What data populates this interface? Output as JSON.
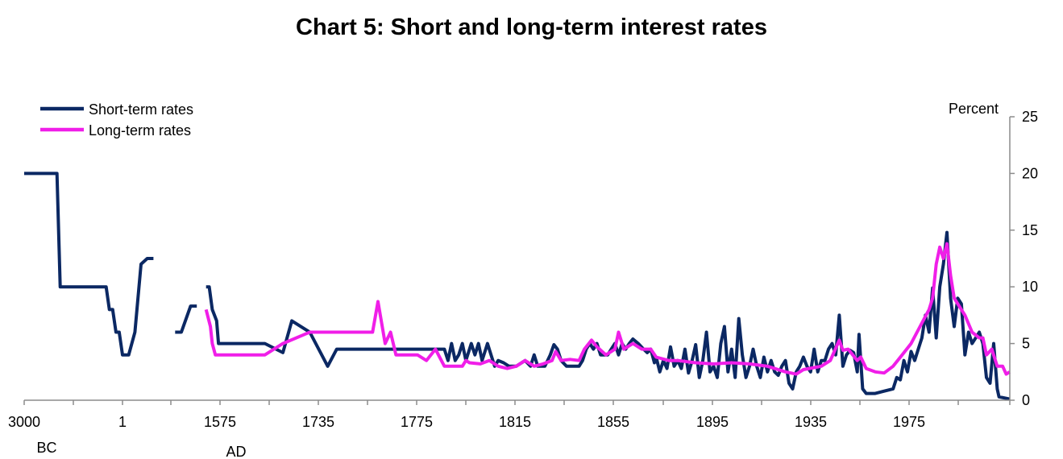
{
  "chart_data": {
    "type": "line",
    "title": "Chart 5: Short and long-term interest rates",
    "ylabel": "Percent",
    "ylim": [
      0,
      25
    ],
    "y_ticks": [
      0,
      5,
      10,
      15,
      20,
      25
    ],
    "x_ticks": [
      "3000",
      "1",
      "1575",
      "1735",
      "1775",
      "1815",
      "1855",
      "1895",
      "1935",
      "1975"
    ],
    "era_labels": [
      "BC",
      "AD"
    ],
    "grid": false,
    "legend_position": "top-left",
    "colors": {
      "short": "#0b2863",
      "long": "#f01ee8"
    },
    "x_axis_note": "piecewise axis: 3000 BC to 1 AD, then 1 to about 1550 AD, then 1575 to 2015",
    "series": [
      {
        "name": "Short-term rates",
        "segments": [
          [
            [
              -3000,
              20
            ],
            [
              -2000,
              20
            ],
            [
              -1900,
              10
            ],
            [
              -1000,
              10
            ],
            [
              -500,
              10
            ],
            [
              -400,
              8
            ],
            [
              -300,
              8
            ],
            [
              -200,
              6
            ],
            [
              -100,
              6
            ],
            [
              0,
              4
            ],
            [
              100,
              4
            ],
            [
              200,
              6
            ],
            [
              300,
              12
            ],
            [
              400,
              12.5
            ],
            [
              500,
              12.5
            ]
          ],
          [
            [
              850,
              6
            ],
            [
              950,
              6
            ],
            [
              1100,
              8.3
            ],
            [
              1200,
              8.3
            ]
          ],
          [
            [
              1350,
              10
            ],
            [
              1400,
              10
            ],
            [
              1450,
              8
            ],
            [
              1520,
              7
            ],
            [
              1550,
              5
            ],
            [
              1575,
              5
            ],
            [
              1600,
              5
            ],
            [
              1610,
              4.2
            ],
            [
              1615,
              7
            ],
            [
              1625,
              6
            ],
            [
              1635,
              3
            ],
            [
              1640,
              4.5
            ],
            [
              1690,
              4.5
            ],
            [
              1700,
              4.5
            ],
            [
              1702,
              3.5
            ],
            [
              1704,
              5
            ],
            [
              1706,
              3.5
            ],
            [
              1708,
              4
            ],
            [
              1710,
              5
            ],
            [
              1712,
              3.5
            ],
            [
              1715,
              5
            ],
            [
              1717,
              4
            ],
            [
              1719,
              5
            ],
            [
              1721,
              3.5
            ],
            [
              1724,
              5
            ],
            [
              1726,
              4
            ],
            [
              1728,
              3
            ],
            [
              1730,
              3.5
            ],
            [
              1733,
              3.3
            ],
            [
              1736,
              3
            ],
            [
              1740,
              3
            ],
            [
              1745,
              3.5
            ],
            [
              1748,
              3
            ],
            [
              1750,
              4
            ],
            [
              1752,
              3
            ],
            [
              1756,
              3
            ],
            [
              1759,
              4
            ],
            [
              1761,
              4.9
            ],
            [
              1763,
              4.5
            ],
            [
              1765,
              3.5
            ],
            [
              1768,
              3
            ],
            [
              1772,
              3
            ],
            [
              1775,
              3
            ],
            [
              1777,
              3.5
            ],
            [
              1779,
              4.5
            ],
            [
              1781,
              5
            ],
            [
              1783,
              4.5
            ],
            [
              1785,
              5
            ],
            [
              1787,
              4
            ],
            [
              1791,
              4
            ],
            [
              1793,
              4.5
            ],
            [
              1795,
              5
            ],
            [
              1797,
              4
            ],
            [
              1799,
              5
            ],
            [
              1801,
              4.5
            ],
            [
              1803,
              5
            ],
            [
              1805,
              5.4
            ],
            [
              1808,
              5
            ],
            [
              1811,
              4.5
            ],
            [
              1813,
              4.2
            ],
            [
              1815,
              4.5
            ],
            [
              1817,
              3.3
            ],
            [
              1818,
              3.8
            ],
            [
              1820,
              2.5
            ],
            [
              1822,
              3.5
            ],
            [
              1824,
              2.8
            ],
            [
              1826,
              4.7
            ],
            [
              1828,
              3
            ],
            [
              1830,
              3.5
            ],
            [
              1832,
              2.8
            ],
            [
              1834,
              4.5
            ],
            [
              1836,
              2.4
            ],
            [
              1838,
              3.5
            ],
            [
              1840,
              4.9
            ],
            [
              1842,
              2
            ],
            [
              1844,
              3.5
            ],
            [
              1846,
              6
            ],
            [
              1848,
              2.5
            ],
            [
              1850,
              3
            ],
            [
              1852,
              2
            ],
            [
              1854,
              5
            ],
            [
              1856,
              6.5
            ],
            [
              1858,
              2.5
            ],
            [
              1860,
              4.5
            ],
            [
              1862,
              2
            ],
            [
              1864,
              7.2
            ],
            [
              1866,
              4
            ],
            [
              1868,
              2
            ],
            [
              1870,
              3
            ],
            [
              1872,
              4.5
            ],
            [
              1874,
              3
            ],
            [
              1876,
              2
            ],
            [
              1878,
              3.8
            ],
            [
              1880,
              2.5
            ],
            [
              1882,
              3.5
            ],
            [
              1884,
              2.5
            ],
            [
              1886,
              2.2
            ],
            [
              1888,
              3
            ],
            [
              1890,
              3.5
            ],
            [
              1892,
              1.5
            ],
            [
              1894,
              1
            ],
            [
              1896,
              2.5
            ],
            [
              1898,
              3
            ],
            [
              1900,
              3.8
            ],
            [
              1902,
              3
            ],
            [
              1904,
              2.5
            ],
            [
              1906,
              4.5
            ],
            [
              1908,
              2.5
            ],
            [
              1910,
              3.5
            ],
            [
              1912,
              3.5
            ],
            [
              1914,
              4.5
            ],
            [
              1916,
              5
            ],
            [
              1918,
              4
            ],
            [
              1920,
              7.5
            ],
            [
              1922,
              3
            ],
            [
              1924,
              4
            ],
            [
              1926,
              4.4
            ],
            [
              1928,
              4.2
            ],
            [
              1930,
              2.5
            ],
            [
              1931,
              5.8
            ],
            [
              1933,
              1
            ],
            [
              1935,
              0.6
            ],
            [
              1940,
              0.6
            ],
            [
              1945,
              0.8
            ],
            [
              1950,
              1
            ],
            [
              1952,
              2
            ],
            [
              1954,
              1.8
            ],
            [
              1956,
              3.5
            ],
            [
              1958,
              2.5
            ],
            [
              1960,
              4.3
            ],
            [
              1962,
              3.5
            ],
            [
              1964,
              4.5
            ],
            [
              1966,
              5.5
            ],
            [
              1968,
              7.5
            ],
            [
              1970,
              6
            ],
            [
              1972,
              9.9
            ],
            [
              1974,
              5.5
            ],
            [
              1976,
              10
            ],
            [
              1978,
              12
            ],
            [
              1980,
              14.8
            ],
            [
              1982,
              9
            ],
            [
              1984,
              6.5
            ],
            [
              1986,
              9
            ],
            [
              1988,
              8.5
            ],
            [
              1990,
              4
            ],
            [
              1992,
              6
            ],
            [
              1994,
              5
            ],
            [
              1996,
              5.5
            ],
            [
              1998,
              6
            ],
            [
              2000,
              5
            ],
            [
              2002,
              2
            ],
            [
              2004,
              1.5
            ],
            [
              2006,
              5
            ],
            [
              2008,
              1
            ],
            [
              2009,
              0.3
            ],
            [
              2012,
              0.2
            ],
            [
              2015,
              0.1
            ]
          ]
        ]
      },
      {
        "name": "Long-term rates",
        "segments": [
          [
            [
              1350,
              8
            ],
            [
              1420,
              6.5
            ],
            [
              1450,
              5
            ],
            [
              1500,
              4
            ],
            [
              1575,
              4
            ],
            [
              1600,
              4
            ],
            [
              1610,
              5
            ],
            [
              1625,
              6
            ],
            [
              1660,
              6
            ],
            [
              1663,
              8.7
            ],
            [
              1667,
              5
            ],
            [
              1670,
              6
            ],
            [
              1673,
              4
            ],
            [
              1685,
              4
            ],
            [
              1690,
              3.5
            ],
            [
              1695,
              4.5
            ],
            [
              1700,
              3
            ],
            [
              1710,
              3
            ],
            [
              1712,
              3.5
            ],
            [
              1714,
              3.3
            ],
            [
              1720,
              3.2
            ],
            [
              1725,
              3.5
            ],
            [
              1730,
              3
            ],
            [
              1735,
              2.8
            ],
            [
              1740,
              3
            ],
            [
              1745,
              3.5
            ],
            [
              1750,
              3
            ],
            [
              1755,
              3.2
            ],
            [
              1760,
              3.5
            ],
            [
              1762,
              4.3
            ],
            [
              1765,
              3.5
            ],
            [
              1770,
              3.6
            ],
            [
              1775,
              3.5
            ],
            [
              1778,
              4.5
            ],
            [
              1782,
              5.3
            ],
            [
              1785,
              4.7
            ],
            [
              1790,
              4
            ],
            [
              1795,
              4.5
            ],
            [
              1797,
              6
            ],
            [
              1800,
              4.5
            ],
            [
              1805,
              5
            ],
            [
              1810,
              4.5
            ],
            [
              1815,
              4.5
            ],
            [
              1818,
              3.8
            ],
            [
              1825,
              3.5
            ],
            [
              1830,
              3.5
            ],
            [
              1840,
              3.3
            ],
            [
              1850,
              3.2
            ],
            [
              1860,
              3.3
            ],
            [
              1870,
              3.2
            ],
            [
              1880,
              3
            ],
            [
              1890,
              2.5
            ],
            [
              1896,
              2.3
            ],
            [
              1900,
              2.7
            ],
            [
              1910,
              3
            ],
            [
              1915,
              3.5
            ],
            [
              1920,
              5.3
            ],
            [
              1922,
              4.4
            ],
            [
              1925,
              4.5
            ],
            [
              1930,
              3.5
            ],
            [
              1932,
              3.8
            ],
            [
              1935,
              2.8
            ],
            [
              1940,
              2.5
            ],
            [
              1945,
              2.4
            ],
            [
              1950,
              3
            ],
            [
              1955,
              4
            ],
            [
              1960,
              5
            ],
            [
              1965,
              6.5
            ],
            [
              1970,
              8
            ],
            [
              1972,
              9
            ],
            [
              1974,
              12
            ],
            [
              1976,
              13.5
            ],
            [
              1978,
              12.5
            ],
            [
              1980,
              13.8
            ],
            [
              1982,
              11
            ],
            [
              1984,
              9
            ],
            [
              1986,
              8.5
            ],
            [
              1990,
              7.5
            ],
            [
              1994,
              6
            ],
            [
              1998,
              5.5
            ],
            [
              2000,
              5.5
            ],
            [
              2002,
              4
            ],
            [
              2005,
              4.5
            ],
            [
              2008,
              3
            ],
            [
              2011,
              3
            ],
            [
              2013,
              2.3
            ],
            [
              2015,
              2.5
            ]
          ]
        ]
      }
    ]
  }
}
